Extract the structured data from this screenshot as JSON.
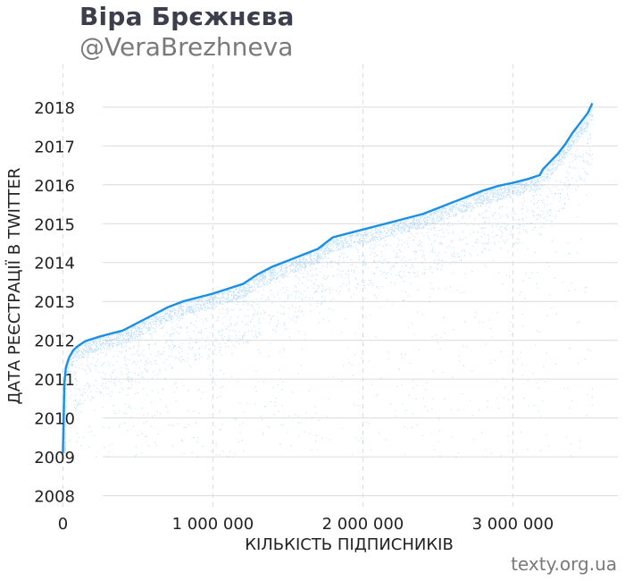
{
  "header": {
    "title": "Віра Брєжнєва",
    "subtitle": "@VeraBrezhneva"
  },
  "footer": {
    "source": "texty.org.ua"
  },
  "colors": {
    "points": "#1a8fe3",
    "grid": "#dcdcdc",
    "text": "#222222"
  },
  "chart_data": {
    "type": "scatter",
    "xlabel": "КІЛЬКІСТЬ ПІДПИСНИКІВ",
    "ylabel": "ДАТА РЕЄСТРАЦІЇ В TWITTER",
    "xlim": [
      -330000,
      3700000
    ],
    "ylim": [
      2007.6,
      2019.1
    ],
    "x_ticks": [
      {
        "value": 0,
        "label": "0"
      },
      {
        "value": 1000000,
        "label": "1 000 000"
      },
      {
        "value": 2000000,
        "label": "2 000 000"
      },
      {
        "value": 3000000,
        "label": "3 000 000"
      }
    ],
    "y_ticks": [
      {
        "value": 2008,
        "label": "2008"
      },
      {
        "value": 2009,
        "label": "2009"
      },
      {
        "value": 2010,
        "label": "2010"
      },
      {
        "value": 2011,
        "label": "2011"
      },
      {
        "value": 2012,
        "label": "2012"
      },
      {
        "value": 2013,
        "label": "2013"
      },
      {
        "value": 2014,
        "label": "2014"
      },
      {
        "value": 2015,
        "label": "2015"
      },
      {
        "value": 2016,
        "label": "2016"
      },
      {
        "value": 2017,
        "label": "2017"
      },
      {
        "value": 2018,
        "label": "2018"
      }
    ],
    "grid": true,
    "frontier": {
      "x": [
        0,
        10000,
        20000,
        40000,
        70000,
        100000,
        150000,
        250000,
        400000,
        500000,
        600000,
        700000,
        800000,
        1000000,
        1200000,
        1300000,
        1400000,
        1500000,
        1600000,
        1700000,
        1750000,
        1800000,
        2000000,
        2200000,
        2400000,
        2500000,
        2600000,
        2700000,
        2800000,
        2900000,
        3000000,
        3100000,
        3180000,
        3200000,
        3300000,
        3350000,
        3400000,
        3450000,
        3500000,
        3530000
      ],
      "y": [
        2009.1,
        2010.9,
        2011.3,
        2011.55,
        2011.75,
        2011.85,
        2011.98,
        2012.1,
        2012.25,
        2012.45,
        2012.65,
        2012.85,
        2013.0,
        2013.2,
        2013.45,
        2013.7,
        2013.9,
        2014.05,
        2014.2,
        2014.35,
        2014.5,
        2014.65,
        2014.85,
        2015.05,
        2015.25,
        2015.4,
        2015.55,
        2015.7,
        2015.85,
        2015.97,
        2016.05,
        2016.15,
        2016.25,
        2016.4,
        2016.8,
        2017.05,
        2017.35,
        2017.6,
        2017.85,
        2018.1
      ]
    }
  }
}
